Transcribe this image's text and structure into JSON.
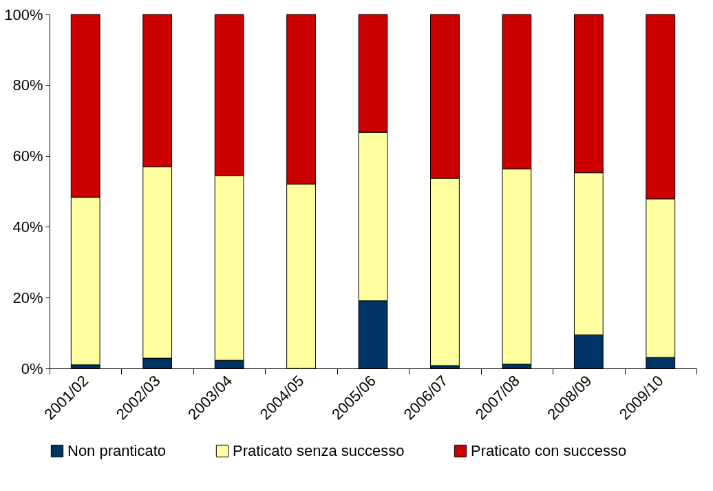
{
  "chart_data": {
    "type": "bar",
    "stacked": true,
    "categories": [
      "2001/02",
      "2002/03",
      "2003/04",
      "2004/05",
      "2005/06",
      "2006/07",
      "2007/08",
      "2008/09",
      "2009/10"
    ],
    "series": [
      {
        "name": "Non pranticato",
        "color": "#003366",
        "values": [
          1.0,
          2.9,
          2.3,
          0,
          19.1,
          0.8,
          1.2,
          9.5,
          3.1
        ]
      },
      {
        "name": "Praticato senza successo",
        "color": "#ffffa0",
        "values": [
          47.4,
          54.1,
          52.2,
          52.1,
          47.6,
          52.9,
          55.2,
          45.8,
          44.8
        ]
      },
      {
        "name": "Praticato con successo",
        "color": "#cc0000",
        "values": [
          51.6,
          43.0,
          45.5,
          47.9,
          33.3,
          46.3,
          43.6,
          44.7,
          52.1
        ]
      }
    ],
    "ylim": [
      0,
      100
    ],
    "yticks": [
      {
        "value": 0,
        "label": "0%"
      },
      {
        "value": 20,
        "label": "20%"
      },
      {
        "value": 40,
        "label": "40%"
      },
      {
        "value": 60,
        "label": "60%"
      },
      {
        "value": 80,
        "label": "80%"
      },
      {
        "value": 100,
        "label": "100%"
      }
    ],
    "grid": false,
    "legend": "bottom"
  }
}
